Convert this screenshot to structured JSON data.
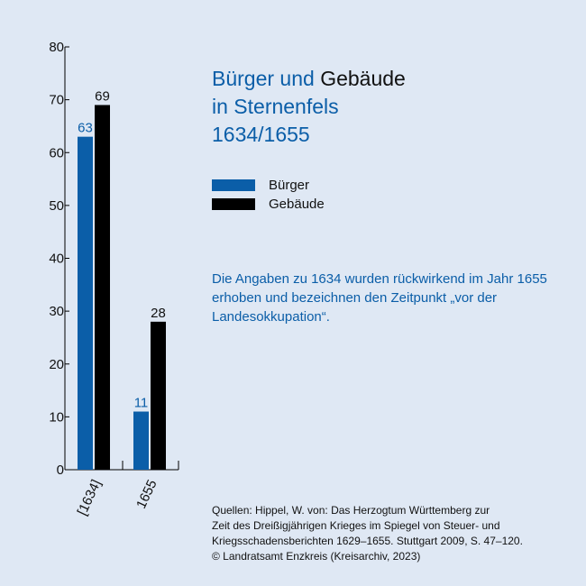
{
  "colors": {
    "background": "#dfe8f4",
    "buerger": "#0b5ea8",
    "gebaeude": "#000000"
  },
  "title": {
    "part1": "Bürger und",
    "part2": "Gebäude",
    "line2": "in Sternenfels",
    "line3": "1634/1655"
  },
  "legend": [
    {
      "label": "Bürger",
      "color": "#0b5ea8"
    },
    {
      "label": "Gebäude",
      "color": "#000000"
    }
  ],
  "note": "Die Angaben zu 1634 wurden rückwirkend im Jahr 1655 erhoben und bezeichnen den Zeitpunkt „vor der Landesokkupation“.",
  "sources": [
    "Quellen: Hippel, W. von: Das Herzogtum Württemberg zur",
    "Zeit des Dreißigjährigen Krieges im Spiegel von Steuer- und",
    "Kriegsschadensberichten 1629–1655. Stuttgart 2009, S. 47–120.",
    "© Landratsamt Enzkreis (Kreisarchiv, 2023)"
  ],
  "chart_data": {
    "type": "bar",
    "categories": [
      "[1634]",
      "1655"
    ],
    "series": [
      {
        "name": "Bürger",
        "values": [
          63,
          11
        ],
        "color": "#0b5ea8"
      },
      {
        "name": "Gebäude",
        "values": [
          69,
          28
        ],
        "color": "#000000"
      }
    ],
    "ylim": [
      0,
      80
    ],
    "yticks": [
      0,
      10,
      20,
      30,
      40,
      50,
      60,
      70,
      80
    ],
    "legend_position": "right",
    "grid": false
  }
}
